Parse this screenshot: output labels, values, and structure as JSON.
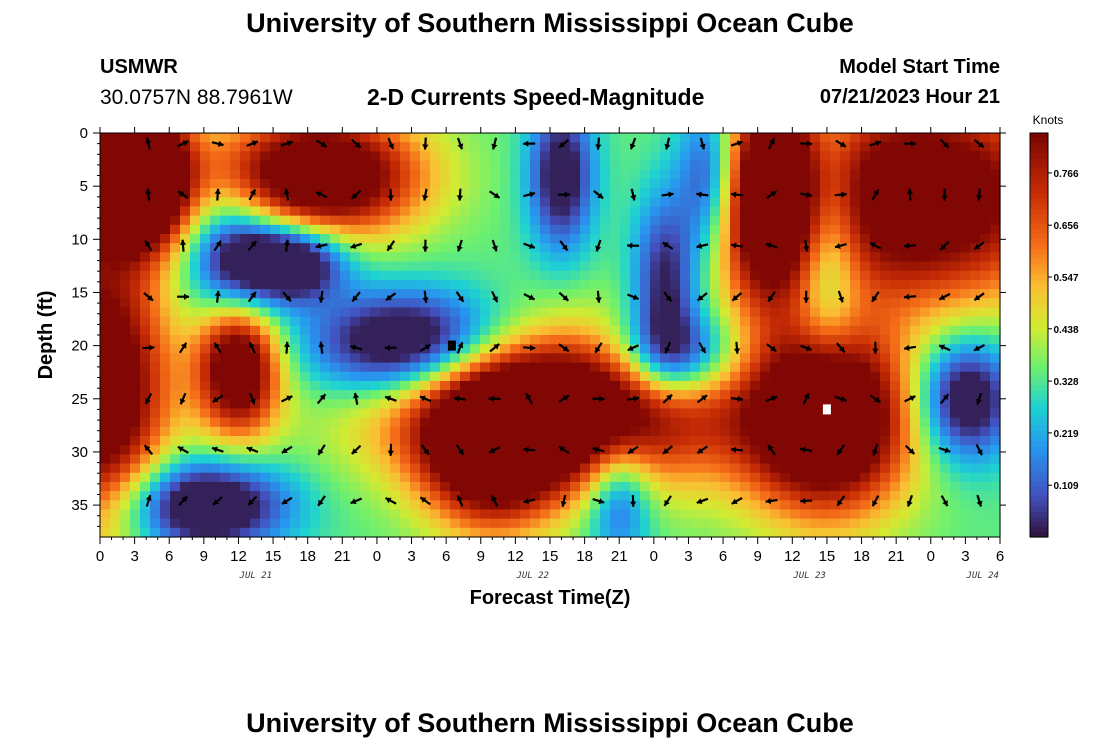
{
  "header": {
    "title": "University of Southern Mississippi Ocean Cube",
    "station": "USMWR",
    "coords": "30.0757N  88.7961W",
    "subtitle": "2-D Currents Speed-Magnitude",
    "start_label": "Model Start Time",
    "start_value": "07/21/2023 Hour 21"
  },
  "footer": {
    "title": "University of Southern Mississippi Ocean Cube"
  },
  "chart_data": {
    "type": "heatmap",
    "title": "2-D Currents Speed-Magnitude",
    "xlabel": "Forecast Time(Z)",
    "ylabel": "Depth (ft)",
    "x_tick_labels": [
      "0",
      "3",
      "6",
      "9",
      "12",
      "15",
      "18",
      "21",
      "0",
      "3",
      "6",
      "9",
      "12",
      "15",
      "18",
      "21",
      "0",
      "3",
      "6",
      "9",
      "12",
      "15",
      "18",
      "21",
      "0",
      "3",
      "6"
    ],
    "date_labels": [
      {
        "label": "JUL 21",
        "tick_index": 4.5
      },
      {
        "label": "JUL 22",
        "tick_index": 12.5
      },
      {
        "label": "JUL 23",
        "tick_index": 20.5
      },
      {
        "label": "JUL 24",
        "tick_index": 25.5
      }
    ],
    "y_ticks": [
      0,
      5,
      10,
      15,
      20,
      25,
      30,
      35
    ],
    "ylim": [
      0,
      38
    ],
    "xlim_hours": [
      0,
      78
    ],
    "colorbar": {
      "unit": "Knots",
      "labels": [
        "0.766",
        "0.656",
        "0.547",
        "0.438",
        "0.328",
        "0.219",
        "0.109"
      ],
      "range": [
        0,
        0.85
      ]
    },
    "blobs": [
      {
        "t": 0,
        "d": 24,
        "v": 0.72,
        "st": 4,
        "sd": 9
      },
      {
        "t": 2,
        "d": 4,
        "v": 0.68,
        "st": 3.5,
        "sd": 5
      },
      {
        "t": 4,
        "d": 4,
        "v": 0.6,
        "st": 2.5,
        "sd": 4
      },
      {
        "t": 12,
        "d": 22,
        "v": 0.68,
        "st": 2.5,
        "sd": 4.5
      },
      {
        "t": 19,
        "d": 4,
        "v": 0.74,
        "st": 6,
        "sd": 4
      },
      {
        "t": 40,
        "d": 26,
        "v": 0.78,
        "st": 10,
        "sd": 5
      },
      {
        "t": 34,
        "d": 30,
        "v": 0.6,
        "st": 4,
        "sd": 5
      },
      {
        "t": 58,
        "d": 6,
        "v": 0.68,
        "st": 3,
        "sd": 7
      },
      {
        "t": 71,
        "d": 6,
        "v": 0.68,
        "st": 9,
        "sd": 7
      },
      {
        "t": 63,
        "d": 27,
        "v": 0.82,
        "st": 5,
        "sd": 6
      },
      {
        "t": 12,
        "d": 12,
        "v": -0.42,
        "st": 3,
        "sd": 4
      },
      {
        "t": 17,
        "d": 12,
        "v": -0.48,
        "st": 3,
        "sd": 2.5
      },
      {
        "t": 9,
        "d": 35,
        "v": -0.5,
        "st": 5,
        "sd": 3
      },
      {
        "t": 27,
        "d": 20,
        "v": -0.55,
        "st": 6,
        "sd": 3.5
      },
      {
        "t": 49,
        "d": 14,
        "v": -0.35,
        "st": 2,
        "sd": 6
      },
      {
        "t": 50,
        "d": 21,
        "v": -0.42,
        "st": 4,
        "sd": 3
      },
      {
        "t": 53,
        "d": 4,
        "v": -0.38,
        "st": 2,
        "sd": 5
      },
      {
        "t": 75,
        "d": 25,
        "v": -0.45,
        "st": 3,
        "sd": 4
      },
      {
        "t": 40,
        "d": 4,
        "v": -0.4,
        "st": 2,
        "sd": 5
      },
      {
        "t": 63,
        "d": 10,
        "v": -0.3,
        "st": 2,
        "sd": 8
      },
      {
        "t": 45,
        "d": 34,
        "v": -0.3,
        "st": 2,
        "sd": 4
      }
    ],
    "markers": [
      {
        "t": 30.5,
        "d": 20,
        "color": "#000000"
      },
      {
        "t": 63,
        "d": 26,
        "color": "#ffffff"
      }
    ]
  }
}
